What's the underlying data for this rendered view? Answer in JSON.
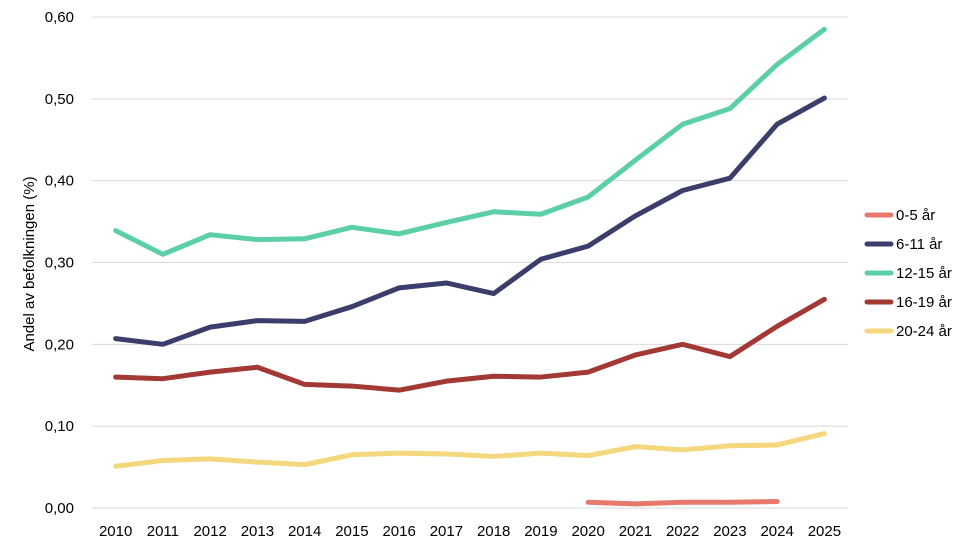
{
  "chart_data": {
    "type": "line",
    "title": "",
    "xlabel": "",
    "ylabel": "Andel av befolkningen (%)",
    "ylim": [
      0,
      0.6
    ],
    "yticks": [
      "0,00",
      "0,10",
      "0,20",
      "0,30",
      "0,40",
      "0,50",
      "0,60"
    ],
    "ytick_values": [
      0,
      0.1,
      0.2,
      0.3,
      0.4,
      0.5,
      0.6
    ],
    "grid": "horizontal",
    "legend_position": "right",
    "categories": [
      "2010",
      "2011",
      "2012",
      "2013",
      "2014",
      "2015",
      "2016",
      "2017",
      "2018",
      "2019",
      "2020",
      "2021",
      "2022",
      "2023",
      "2024",
      "2025"
    ],
    "series": [
      {
        "name": "0-5 år",
        "color": "#e8786c",
        "values": [
          null,
          null,
          null,
          null,
          null,
          null,
          null,
          null,
          null,
          null,
          0.007,
          0.005,
          0.007,
          0.007,
          0.008,
          null
        ]
      },
      {
        "name": "6-11 år",
        "color": "#3b3d6b",
        "values": [
          0.207,
          0.2,
          0.221,
          0.229,
          0.228,
          0.246,
          0.269,
          0.275,
          0.262,
          0.304,
          0.32,
          0.357,
          0.388,
          0.403,
          0.469,
          0.501
        ]
      },
      {
        "name": "12-15 år",
        "color": "#5ccfa5",
        "values": [
          0.339,
          0.31,
          0.334,
          0.328,
          0.329,
          0.343,
          0.335,
          0.349,
          0.362,
          0.359,
          0.38,
          0.425,
          0.469,
          0.488,
          0.542,
          0.585
        ]
      },
      {
        "name": "16-19 år",
        "color": "#a33935",
        "values": [
          0.16,
          0.158,
          0.166,
          0.172,
          0.151,
          0.149,
          0.144,
          0.155,
          0.161,
          0.16,
          0.166,
          0.187,
          0.2,
          0.185,
          0.222,
          0.255
        ]
      },
      {
        "name": "20-24 år",
        "color": "#f5d77e",
        "values": [
          0.051,
          0.058,
          0.06,
          0.056,
          0.053,
          0.065,
          0.067,
          0.066,
          0.063,
          0.067,
          0.064,
          0.075,
          0.071,
          0.076,
          0.077,
          0.091
        ]
      }
    ]
  }
}
